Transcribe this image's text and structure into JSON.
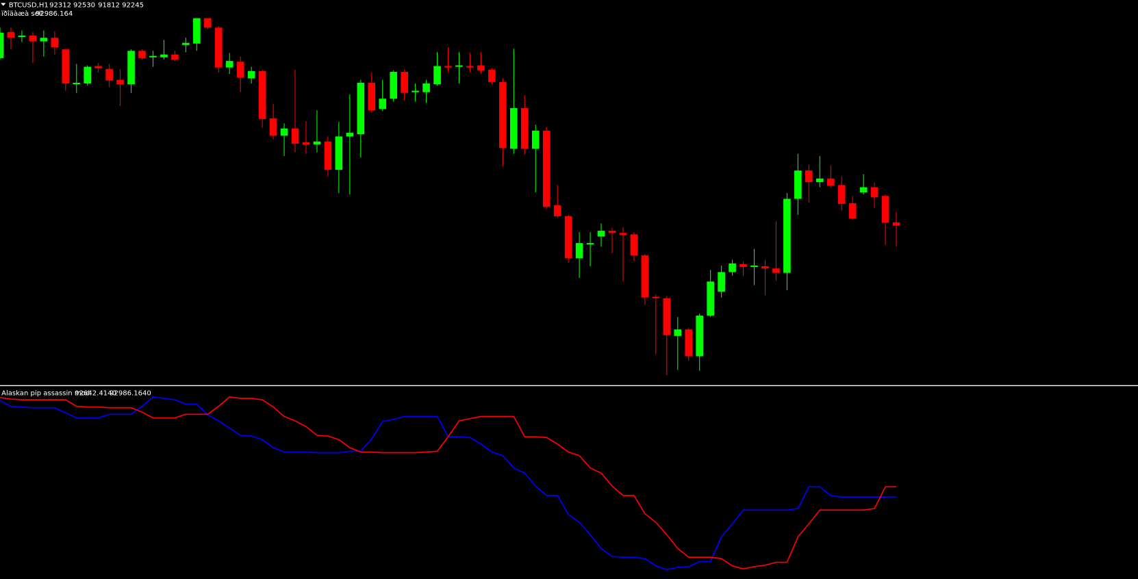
{
  "chart_data": [
    {
      "type": "candlestick",
      "title": "BTCUSD,H1",
      "subtitle": "ïðîäàæà sell",
      "up_color": "#00ff00",
      "down_color": "#ff0000",
      "ylim": [
        88960,
        96910
      ],
      "open": [
        95710,
        96250,
        96145,
        96175,
        96055,
        96130,
        95890,
        95170,
        95185,
        95545,
        95485,
        95260,
        95170,
        95860,
        95725,
        95725,
        95785,
        95980,
        96010,
        96535,
        96340,
        95515,
        95635,
        95290,
        95440,
        94465,
        94105,
        94255,
        93970,
        93925,
        93985,
        93400,
        94090,
        94135,
        95200,
        94660,
        94870,
        95425,
        95005,
        95005,
        95170,
        95545,
        95530,
        95545,
        95560,
        95470,
        95215,
        93835,
        94675,
        93835,
        94210,
        92665,
        92440,
        91570,
        91855,
        92020,
        92140,
        92095,
        92065,
        91630,
        90775,
        90745,
        89965,
        90100,
        89545,
        90385,
        90880,
        91285,
        91450,
        91390,
        91405,
        91360,
        91270,
        92800,
        93385,
        93145,
        93220,
        93085,
        92710,
        92935,
        93040,
        92860,
        92312
      ],
      "high": [
        96340,
        96340,
        96280,
        96250,
        96280,
        96265,
        95905,
        95590,
        95560,
        95605,
        95590,
        95485,
        95890,
        95890,
        95860,
        96085,
        95860,
        96130,
        96535,
        96535,
        96370,
        95815,
        95740,
        95530,
        95470,
        94765,
        94360,
        95470,
        94405,
        94630,
        94090,
        94390,
        94960,
        95260,
        95410,
        95260,
        95455,
        95470,
        95185,
        95260,
        95830,
        95935,
        95830,
        95815,
        95830,
        95500,
        95290,
        95905,
        94945,
        94330,
        94285,
        93085,
        92470,
        92110,
        92110,
        92290,
        92200,
        92215,
        92110,
        91660,
        90820,
        90790,
        90355,
        90130,
        90430,
        91330,
        91420,
        91540,
        91510,
        91765,
        91540,
        92335,
        92920,
        93730,
        93505,
        93685,
        93490,
        93265,
        92860,
        93310,
        93130,
        92890,
        92530
      ],
      "low": [
        95680,
        95890,
        96040,
        95605,
        95740,
        95785,
        95035,
        94990,
        95140,
        95410,
        95110,
        94720,
        94990,
        95680,
        95530,
        95680,
        95650,
        95830,
        95860,
        96310,
        95410,
        95380,
        95005,
        95185,
        94270,
        94030,
        93685,
        93760,
        93730,
        93760,
        93265,
        92920,
        92890,
        93655,
        94585,
        94615,
        94810,
        94840,
        94810,
        94780,
        95140,
        95425,
        95185,
        95425,
        95380,
        95170,
        93475,
        93730,
        93715,
        92935,
        92590,
        92410,
        91480,
        91165,
        91405,
        91810,
        91675,
        91090,
        91510,
        90610,
        89590,
        89155,
        89260,
        89455,
        89245,
        90355,
        90760,
        91210,
        91210,
        91015,
        90805,
        91105,
        90910,
        92470,
        92725,
        93040,
        93025,
        92560,
        92365,
        92890,
        92605,
        91840,
        91812
      ],
      "close": [
        96235,
        96130,
        96175,
        96055,
        96130,
        95935,
        95185,
        95200,
        95530,
        95500,
        95245,
        95170,
        95860,
        95710,
        95755,
        95785,
        95680,
        96025,
        96535,
        96340,
        95515,
        95650,
        95305,
        95440,
        94450,
        94105,
        94255,
        93940,
        93925,
        93985,
        93400,
        94090,
        94165,
        95200,
        94630,
        94870,
        95425,
        94990,
        95035,
        95185,
        95545,
        95515,
        95560,
        95515,
        95455,
        95215,
        93850,
        94675,
        93835,
        94210,
        92635,
        92440,
        91570,
        91885,
        91885,
        92140,
        92095,
        92050,
        91630,
        90760,
        90745,
        89980,
        90100,
        89545,
        90385,
        91090,
        91285,
        91465,
        91390,
        91420,
        91360,
        91270,
        92800,
        93385,
        93145,
        93220,
        93070,
        92695,
        92395,
        93040,
        92830,
        92305,
        92245
      ]
    },
    {
      "type": "line",
      "title": "Alaskan pip assassin mod",
      "last_value_labels": [
        "92642.4140",
        "92986.1640"
      ],
      "ylim": [
        89810,
        96435
      ],
      "series": [
        {
          "color": "#0000ff",
          "values": [
            95960,
            95760,
            95735,
            95710,
            95710,
            95710,
            95535,
            95360,
            95360,
            95360,
            95485,
            95485,
            95485,
            95760,
            96085,
            96035,
            95985,
            95835,
            95835,
            95460,
            95260,
            95010,
            94760,
            94735,
            94610,
            94335,
            94185,
            94185,
            94185,
            94160,
            94160,
            94160,
            94210,
            94210,
            94635,
            95235,
            95310,
            95410,
            95410,
            95410,
            95410,
            94710,
            94710,
            94685,
            94460,
            94185,
            94060,
            93635,
            93460,
            93010,
            92685,
            92685,
            92035,
            91760,
            91335,
            90860,
            90585,
            90560,
            90560,
            90510,
            90260,
            90135,
            90210,
            90235,
            90410,
            90410,
            91260,
            91710,
            92185,
            92185,
            92185,
            92185,
            92185,
            92235,
            92985,
            92985,
            92685,
            92635,
            92635,
            92635,
            92635,
            92635,
            92642.414
          ]
        },
        {
          "color": "#ff0000",
          "values": [
            96060,
            96010,
            95985,
            95985,
            95985,
            95985,
            95985,
            95760,
            95735,
            95735,
            95710,
            95710,
            95710,
            95560,
            95360,
            95360,
            95360,
            95485,
            95485,
            95485,
            95760,
            96085,
            96035,
            96035,
            95985,
            95735,
            95410,
            95260,
            95060,
            94760,
            94735,
            94610,
            94335,
            94185,
            94185,
            94160,
            94160,
            94160,
            94160,
            94185,
            94210,
            94710,
            95260,
            95335,
            95410,
            95410,
            95410,
            95410,
            94710,
            94710,
            94685,
            94460,
            94185,
            94060,
            93635,
            93460,
            93010,
            92685,
            92685,
            92060,
            91760,
            91335,
            90860,
            90560,
            90560,
            90560,
            90510,
            90260,
            90160,
            90235,
            90285,
            90385,
            90385,
            91260,
            91710,
            92185,
            92185,
            92185,
            92185,
            92185,
            92235,
            92985,
            92986.164
          ]
        }
      ]
    }
  ]
}
